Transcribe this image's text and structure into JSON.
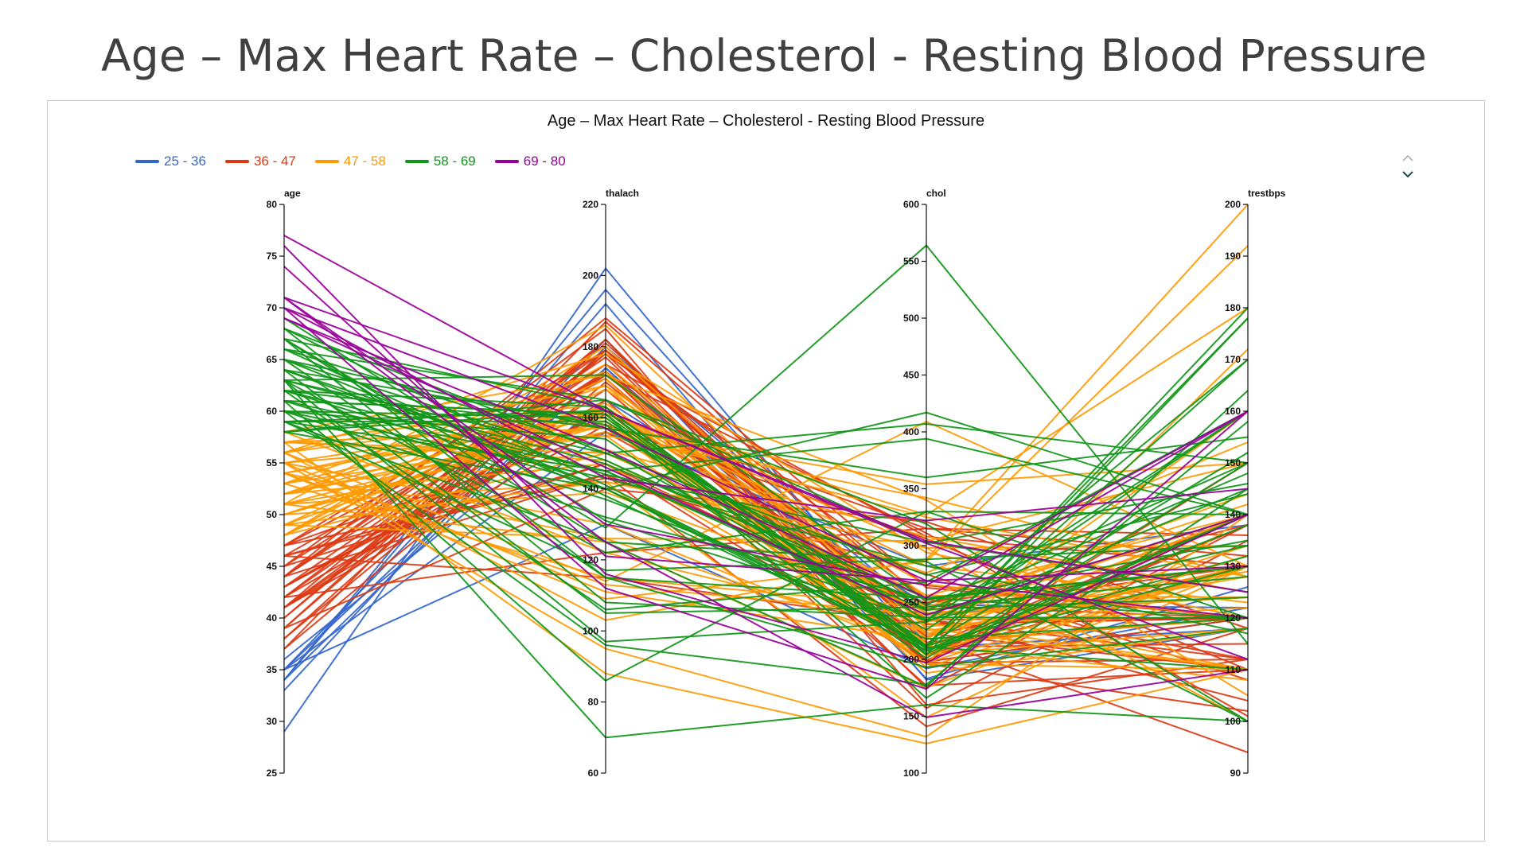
{
  "slide": {
    "title": "Age – Max Heart Rate – Cholesterol - Resting Blood Pressure"
  },
  "chart_data": {
    "type": "parallel-coordinates",
    "title": "Age – Max Heart Rate – Cholesterol - Resting Blood Pressure",
    "legend_position": "top-left",
    "dimensions": [
      {
        "name": "age",
        "range": [
          25,
          80
        ],
        "ticks": [
          25,
          30,
          35,
          40,
          45,
          50,
          55,
          60,
          65,
          70,
          75,
          80
        ]
      },
      {
        "name": "thalach",
        "range": [
          60,
          220
        ],
        "ticks": [
          60,
          80,
          100,
          120,
          140,
          160,
          180,
          200,
          220
        ]
      },
      {
        "name": "chol",
        "range": [
          100,
          600
        ],
        "ticks": [
          100,
          150,
          200,
          250,
          300,
          350,
          400,
          450,
          500,
          550,
          600
        ]
      },
      {
        "name": "trestbps",
        "range": [
          90,
          200
        ],
        "ticks": [
          90,
          100,
          110,
          120,
          130,
          140,
          150,
          160,
          170,
          180,
          190,
          200
        ]
      }
    ],
    "groups": [
      {
        "label": "25 - 36",
        "color": "#3366cc",
        "age_range": [
          25,
          36
        ],
        "records": [
          [
            29,
            202,
            204,
            130
          ],
          [
            34,
            174,
            210,
            118
          ],
          [
            34,
            192,
            182,
            118
          ],
          [
            35,
            174,
            198,
            120
          ],
          [
            35,
            182,
            183,
            126
          ],
          [
            35,
            156,
            282,
            138
          ],
          [
            35,
            130,
            192,
            122
          ],
          [
            34,
            196,
            214,
            120
          ],
          [
            33,
            180,
            240,
            124
          ],
          [
            36,
            165,
            248,
            122
          ]
        ]
      },
      {
        "label": "36 - 47",
        "color": "#dc3912",
        "age_range": [
          36,
          47
        ],
        "records": [
          [
            37,
            187,
            250,
            130
          ],
          [
            37,
            170,
            215,
            120
          ],
          [
            38,
            173,
            175,
            138
          ],
          [
            38,
            179,
            231,
            120
          ],
          [
            39,
            182,
            199,
            138
          ],
          [
            39,
            140,
            321,
            118
          ],
          [
            39,
            179,
            219,
            94
          ],
          [
            40,
            178,
            199,
            140
          ],
          [
            40,
            181,
            223,
            110
          ],
          [
            41,
            163,
            157,
            135
          ],
          [
            41,
            182,
            204,
            130
          ],
          [
            41,
            172,
            235,
            112
          ],
          [
            41,
            168,
            198,
            120
          ],
          [
            41,
            158,
            306,
            110
          ],
          [
            42,
            178,
            265,
            120
          ],
          [
            42,
            162,
            211,
            140
          ],
          [
            42,
            173,
            196,
            102
          ],
          [
            42,
            122,
            315,
            136
          ],
          [
            43,
            175,
            211,
            115
          ],
          [
            43,
            161,
            315,
            132
          ],
          [
            43,
            162,
            247,
            120
          ],
          [
            43,
            165,
            177,
            110
          ],
          [
            44,
            173,
            235,
            120
          ],
          [
            44,
            179,
            220,
            130
          ],
          [
            44,
            188,
            263,
            120
          ],
          [
            44,
            177,
            197,
            112
          ],
          [
            44,
            144,
            141,
            118
          ],
          [
            45,
            175,
            308,
            130
          ],
          [
            45,
            147,
            236,
            104
          ],
          [
            45,
            185,
            160,
            112
          ],
          [
            46,
            172,
            311,
            101
          ],
          [
            46,
            115,
            231,
            120
          ],
          [
            46,
            144,
            249,
            138
          ],
          [
            46,
            147,
            197,
            150
          ],
          [
            47,
            143,
            275,
            108
          ],
          [
            47,
            179,
            253,
            112
          ],
          [
            47,
            156,
            243,
            130
          ],
          [
            47,
            171,
            204,
            138
          ]
        ]
      },
      {
        "label": "47 - 58",
        "color": "#ff9900",
        "age_range": [
          47,
          58
        ],
        "records": [
          [
            48,
            175,
            229,
            122
          ],
          [
            48,
            180,
            222,
            130
          ],
          [
            48,
            168,
            245,
            110
          ],
          [
            48,
            150,
            256,
            124
          ],
          [
            49,
            162,
            266,
            120
          ],
          [
            49,
            142,
            149,
            130
          ],
          [
            49,
            171,
            188,
            118
          ],
          [
            49,
            126,
            212,
            134
          ],
          [
            50,
            159,
            196,
            110
          ],
          [
            50,
            158,
            219,
            140
          ],
          [
            50,
            163,
            233,
            129
          ],
          [
            50,
            139,
            243,
            144
          ],
          [
            51,
            186,
            227,
            110
          ],
          [
            51,
            159,
            222,
            140
          ],
          [
            51,
            151,
            308,
            125
          ],
          [
            51,
            142,
            298,
            100
          ],
          [
            51,
            125,
            175,
            130
          ],
          [
            52,
            158,
            196,
            172
          ],
          [
            52,
            169,
            204,
            118
          ],
          [
            52,
            156,
            325,
            128
          ],
          [
            52,
            162,
            298,
            134
          ],
          [
            52,
            147,
            212,
            108
          ],
          [
            53,
            173,
            203,
            130
          ],
          [
            53,
            115,
            246,
            142
          ],
          [
            53,
            162,
            282,
            123
          ],
          [
            53,
            155,
            197,
            130
          ],
          [
            54,
            160,
            214,
            120
          ],
          [
            54,
            163,
            232,
            110
          ],
          [
            54,
            109,
            286,
            192
          ],
          [
            54,
            113,
            239,
            124
          ],
          [
            54,
            126,
            304,
            150
          ],
          [
            55,
            155,
            342,
            128
          ],
          [
            55,
            111,
            217,
            160
          ],
          [
            55,
            130,
            205,
            132
          ],
          [
            55,
            161,
            327,
            180
          ],
          [
            55,
            95,
            132,
            140
          ],
          [
            56,
            178,
            294,
            120
          ],
          [
            56,
            162,
            193,
            130
          ],
          [
            56,
            103,
            288,
            200
          ],
          [
            56,
            114,
            409,
            130
          ],
          [
            56,
            169,
            256,
            140
          ],
          [
            57,
            157,
            354,
            150
          ],
          [
            57,
            164,
            236,
            140
          ],
          [
            57,
            88,
            126,
            110
          ],
          [
            57,
            148,
            241,
            124
          ],
          [
            57,
            150,
            276,
            154
          ],
          [
            58,
            172,
            340,
            105
          ],
          [
            58,
            122,
            225,
            128
          ]
        ]
      },
      {
        "label": "58 - 69",
        "color": "#109618",
        "age_range": [
          58,
          69
        ],
        "records": [
          [
            58,
            140,
            218,
            120
          ],
          [
            58,
            165,
            319,
            100
          ],
          [
            58,
            162,
            212,
            132
          ],
          [
            59,
            162,
            204,
            178
          ],
          [
            59,
            117,
            288,
            134
          ],
          [
            59,
            145,
            239,
            140
          ],
          [
            59,
            159,
            234,
            170
          ],
          [
            59,
            125,
            176,
            164
          ],
          [
            60,
            160,
            205,
            140
          ],
          [
            60,
            154,
            201,
            150
          ],
          [
            60,
            143,
            282,
            117
          ],
          [
            60,
            132,
            253,
            130
          ],
          [
            60,
            96,
            178,
            158
          ],
          [
            61,
            145,
            243,
            148
          ],
          [
            61,
            137,
            234,
            134
          ],
          [
            61,
            161,
            207,
            138
          ],
          [
            61,
            86,
            330,
            120
          ],
          [
            61,
            161,
            166,
            145
          ],
          [
            62,
            157,
            244,
            124
          ],
          [
            62,
            163,
            209,
            130
          ],
          [
            62,
            106,
            268,
            160
          ],
          [
            62,
            145,
            394,
            140
          ],
          [
            62,
            140,
            208,
            140
          ],
          [
            63,
            172,
            252,
            135
          ],
          [
            63,
            147,
            254,
            130
          ],
          [
            63,
            122,
            330,
            140
          ],
          [
            63,
            150,
            407,
            150
          ],
          [
            63,
            97,
            233,
            145
          ],
          [
            64,
            144,
            303,
            125
          ],
          [
            64,
            158,
            211,
            110
          ],
          [
            64,
            105,
            246,
            128
          ],
          [
            64,
            140,
            212,
            170
          ],
          [
            65,
            148,
            248,
            150
          ],
          [
            65,
            157,
            360,
            155
          ],
          [
            65,
            140,
            417,
            140
          ],
          [
            65,
            115,
            254,
            120
          ],
          [
            66,
            165,
            302,
            146
          ],
          [
            66,
            151,
            226,
            160
          ],
          [
            66,
            138,
            212,
            178
          ],
          [
            67,
            129,
            564,
            115
          ],
          [
            67,
            163,
            212,
            152
          ],
          [
            67,
            125,
            286,
            100
          ],
          [
            67,
            108,
            237,
            120
          ],
          [
            68,
            150,
            274,
            144
          ],
          [
            68,
            141,
            211,
            180
          ],
          [
            68,
            115,
            193,
            118
          ],
          [
            69,
            131,
            234,
            160
          ],
          [
            63,
            70,
            160,
            100
          ]
        ]
      },
      {
        "label": "69 - 80",
        "color": "#990099",
        "age_range": [
          69,
          80
        ],
        "records": [
          [
            69,
            146,
            239,
            140
          ],
          [
            69,
            151,
            254,
            160
          ],
          [
            70,
            143,
            322,
            145
          ],
          [
            70,
            157,
            269,
            130
          ],
          [
            70,
            112,
            174,
            160
          ],
          [
            71,
            162,
            302,
            112
          ],
          [
            71,
            125,
            149,
            110
          ],
          [
            71,
            130,
            265,
            160
          ],
          [
            74,
            121,
            269,
            120
          ],
          [
            76,
            116,
            197,
            140
          ],
          [
            77,
            162,
            304,
            125
          ]
        ]
      }
    ]
  }
}
